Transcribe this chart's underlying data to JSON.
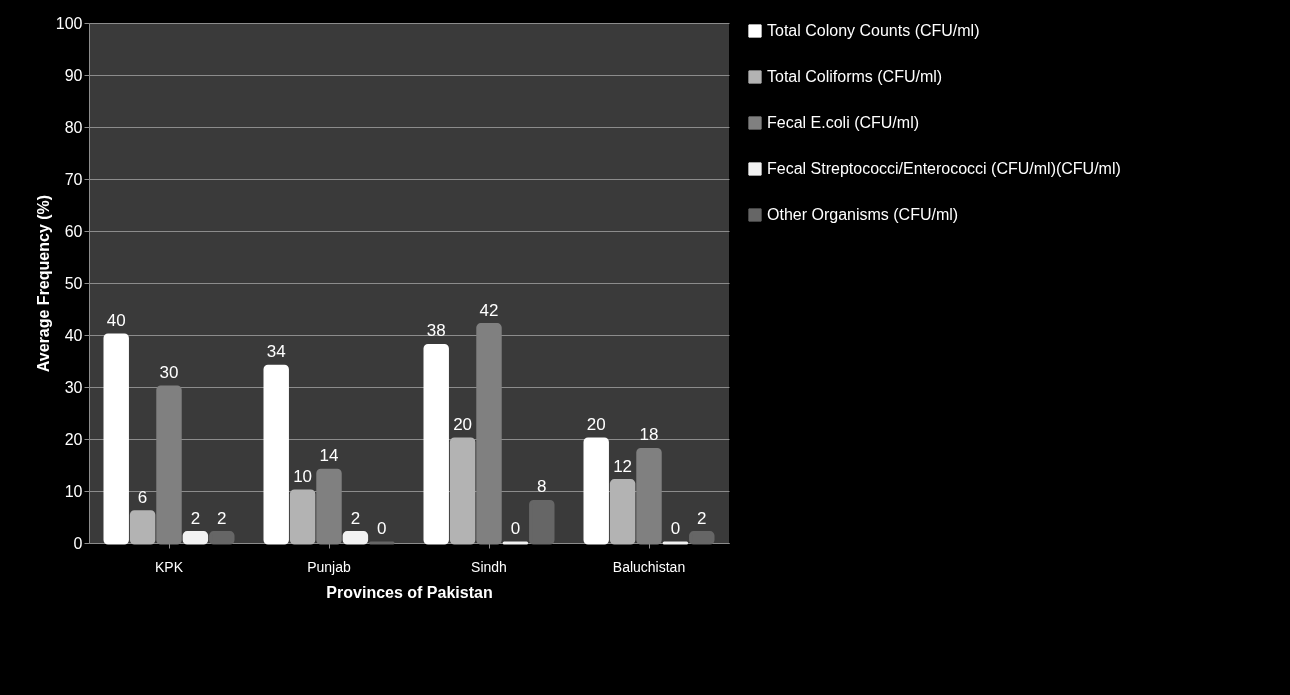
{
  "chart_data": {
    "type": "bar",
    "xlabel": "Provinces of Pakistan",
    "ylabel": "Average Frequency (%)",
    "categories": [
      "KPK",
      "Punjab",
      "Sindh",
      "Baluchistan"
    ],
    "series": [
      {
        "name": "Total Colony Counts  (CFU/ml)",
        "color": "#ffffff",
        "values": [
          40,
          34,
          38,
          20
        ]
      },
      {
        "name": "Total Coliforms (CFU/ml)",
        "color": "#b3b3b3",
        "values": [
          6,
          10,
          20,
          12
        ]
      },
      {
        "name": "Fecal E.coli (CFU/ml)",
        "color": "#808080",
        "values": [
          30,
          14,
          42,
          18
        ]
      },
      {
        "name": "Fecal Streptococci/Enterococci (CFU/ml)(CFU/ml)",
        "color": "#f2f2f2",
        "values": [
          2,
          2,
          0,
          0
        ]
      },
      {
        "name": "Other Organisms (CFU/ml)",
        "color": "#666666",
        "values": [
          2,
          0,
          8,
          2
        ]
      }
    ],
    "ylim": [
      0,
      100
    ],
    "yticks": [
      0,
      10,
      20,
      30,
      40,
      50,
      60,
      70,
      80,
      90,
      100
    ],
    "grid": "y",
    "legend": "right",
    "data_labels": true
  }
}
